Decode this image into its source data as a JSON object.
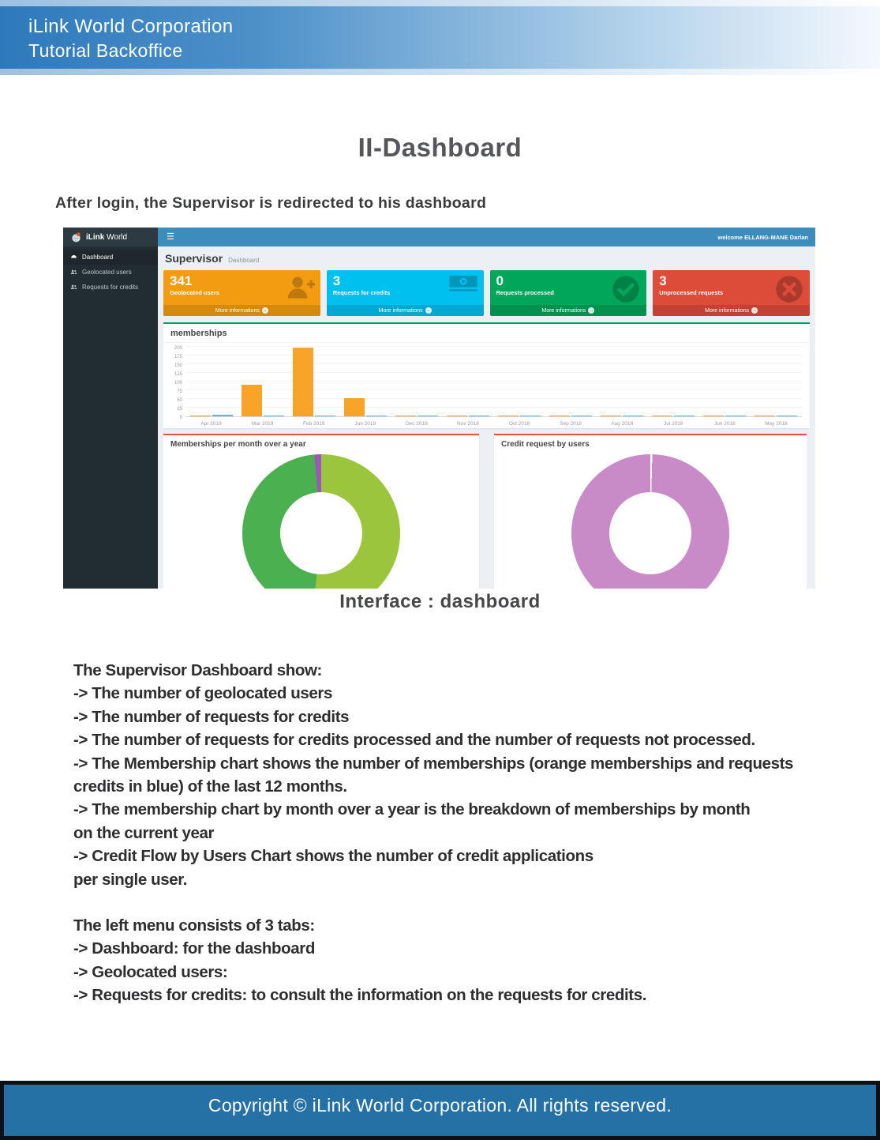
{
  "doc": {
    "header": {
      "line1": "iLink World Corporation",
      "line2": "Tutorial Backoffice"
    },
    "title": "II-Dashboard",
    "intro": "After login, the Supervisor is redirected to his dashboard",
    "caption": "Interface : dashboard",
    "paragraphs": [
      [
        "The Supervisor Dashboard show:",
        "-> The number of geolocated users",
        "-> The number of requests for credits",
        "-> The number of requests for credits processed and the number of requests not processed.",
        "-> The Membership chart shows the number of memberships (orange memberships and requests",
        "credits in blue) of the last 12 months.",
        "-> The membership chart by month over a year is the breakdown of memberships by month",
        "on the current year",
        "-> Credit Flow by Users Chart shows the number of credit applications",
        "per single user."
      ],
      [
        "The left menu consists of 3 tabs:",
        "-> Dashboard: for the dashboard",
        "-> Geolocated users:",
        "-> Requests for credits: to consult the information on the requests for credits."
      ]
    ],
    "footer": "Copyright © iLink World Corporation. All rights reserved."
  },
  "app": {
    "brand": {
      "bold": "iLink",
      "rest": " World"
    },
    "welcome": "welcome ELLANG-MANE Darlan",
    "sidebar": [
      {
        "label": "Dashboard",
        "icon": "dashboard-icon",
        "active": true
      },
      {
        "label": "Geolocated users",
        "icon": "users-icon",
        "active": false
      },
      {
        "label": "Requests for credits",
        "icon": "users-icon",
        "active": false
      }
    ],
    "heading": {
      "title": "Supervisor",
      "breadcrumb": "Dashboard"
    },
    "cards": [
      {
        "value": "341",
        "label": "Geolocated users",
        "footer": "More informations",
        "icon": "user-add-icon",
        "bg": "#f39c12"
      },
      {
        "value": "3",
        "label": "Requests for credits",
        "footer": "More informations",
        "icon": "money-icon",
        "bg": "#00c0ef"
      },
      {
        "value": "0",
        "label": "Requests processed",
        "footer": "More informations",
        "icon": "check-circle-icon",
        "bg": "#00a65a"
      },
      {
        "value": "3",
        "label": "Unprocessed requests",
        "footer": "More informations",
        "icon": "close-circle-icon",
        "bg": "#dd4b39"
      }
    ]
  },
  "chart_data": [
    {
      "type": "bar",
      "title": "memberships",
      "categories": [
        "Apr 2019",
        "Mar 2019",
        "Feb 2019",
        "Jan 2019",
        "Dec 2018",
        "Nov 2018",
        "Oct 2018",
        "Sep 2018",
        "Aug 2018",
        "Jul 2018",
        "Jun 2018",
        "May 2018"
      ],
      "series": [
        {
          "name": "memberships",
          "color": "#f7a428",
          "values": [
            2,
            90,
            198,
            52,
            2,
            3,
            2,
            2,
            2,
            2,
            3,
            2
          ]
        },
        {
          "name": "requests credits",
          "color": "#55b8ea",
          "values": [
            4,
            1,
            1,
            1,
            1,
            1,
            2,
            2,
            2,
            2,
            2,
            2
          ]
        }
      ],
      "xlabel": "",
      "ylabel": "",
      "ylim": [
        0,
        200
      ],
      "yticks": [
        0,
        25,
        50,
        75,
        100,
        125,
        150,
        175,
        200
      ],
      "grid": true,
      "legend": "none"
    },
    {
      "type": "pie",
      "title": "Memberships per month over a year",
      "donut": true,
      "slices": [
        {
          "label": "segment-yellowgreen",
          "value": 51.7,
          "color": "#9bc53d"
        },
        {
          "label": "segment-green",
          "value": 46.9,
          "color": "#4bb04f"
        },
        {
          "label": "segment-purple",
          "value": 1.4,
          "color": "#9b59b6"
        }
      ]
    },
    {
      "type": "pie",
      "title": "Credit request by users",
      "donut": true,
      "slices": [
        {
          "label": "divider",
          "value": 0.4,
          "color": "#ffffff"
        },
        {
          "label": "segment-orchid",
          "value": 99.6,
          "color": "#c88bc8"
        }
      ]
    }
  ]
}
